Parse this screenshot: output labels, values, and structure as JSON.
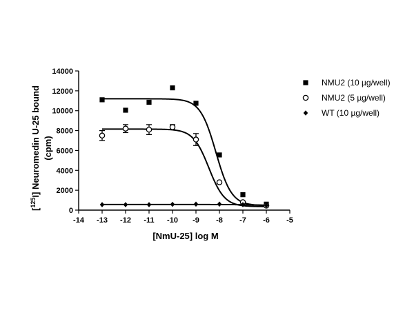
{
  "chart_data": {
    "type": "scatter",
    "xlabel": "[NmU-25] log M",
    "ylabel_main": "] Neuromedin U-25 bound",
    "ylabel_prefix": "[",
    "ylabel_superscript": "125",
    "ylabel_element": "I",
    "ylabel_unit": "(cpm)",
    "xlim": [
      -14,
      -5
    ],
    "ylim": [
      0,
      14000
    ],
    "x_ticks": [
      -14,
      -13,
      -12,
      -11,
      -10,
      -9,
      -8,
      -7,
      -6,
      -5
    ],
    "y_ticks": [
      0,
      2000,
      4000,
      6000,
      8000,
      10000,
      12000,
      14000
    ],
    "legend_position": "top-right",
    "series": [
      {
        "name": "NMU2 (10 µg/well)",
        "marker": "filled-square",
        "x": [
          -13,
          -12,
          -11,
          -10,
          -9,
          -8,
          -7,
          -6
        ],
        "y": [
          11100,
          10050,
          10850,
          12300,
          10750,
          5550,
          1550,
          600
        ],
        "fit": {
          "top": 11200,
          "bottom": 450,
          "logIC50": -8.15,
          "hill": 1.3
        }
      },
      {
        "name": "NMU2 (5 µg/well)",
        "marker": "open-circle",
        "x": [
          -13,
          -12,
          -11,
          -10,
          -9,
          -8,
          -7,
          -6
        ],
        "y": [
          7500,
          8200,
          8100,
          8350,
          7100,
          2800,
          800,
          450
        ],
        "err": [
          500,
          400,
          500,
          250,
          600,
          150,
          100,
          50
        ],
        "fit": {
          "top": 8150,
          "bottom": 350,
          "logIC50": -8.45,
          "hill": 1.3
        }
      },
      {
        "name": "WT (10 µg/well)",
        "marker": "filled-diamond",
        "x": [
          -13,
          -12,
          -11,
          -10,
          -9,
          -8,
          -7,
          -6
        ],
        "y": [
          550,
          550,
          550,
          580,
          600,
          600,
          550,
          480
        ],
        "fit": {
          "top": 560,
          "bottom": 480,
          "logIC50": -6.5,
          "hill": 1.0
        }
      }
    ]
  }
}
